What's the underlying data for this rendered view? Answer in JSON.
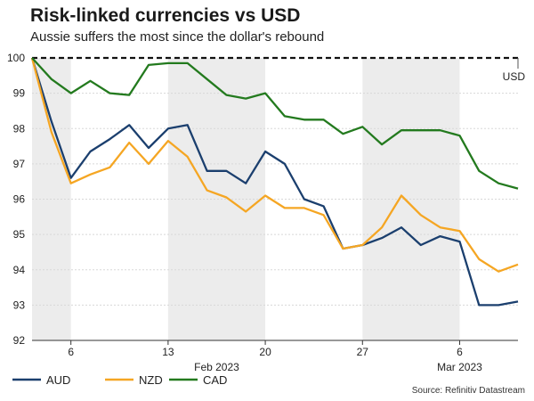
{
  "title": "Risk-linked currencies vs USD",
  "subtitle": "Aussie suffers the most since the dollar's rebound",
  "source": "Source: Refinitiv Datastream",
  "chart_data": {
    "type": "line",
    "x_tick_labels": [
      "6",
      "13",
      "20",
      "27",
      "6"
    ],
    "x_month_labels": [
      "Feb 2023",
      "Mar 2023"
    ],
    "ylim": [
      92,
      100
    ],
    "yticks": [
      92,
      93,
      94,
      95,
      96,
      97,
      98,
      99,
      100
    ],
    "grid": "horizontal",
    "legend_position": "bottom-left",
    "reference_line": {
      "label": "USD",
      "value": 100
    },
    "x": [
      "Feb 2",
      "Feb 3",
      "Feb 6",
      "Feb 7",
      "Feb 8",
      "Feb 9",
      "Feb 10",
      "Feb 13",
      "Feb 14",
      "Feb 15",
      "Feb 16",
      "Feb 17",
      "Feb 20",
      "Feb 21",
      "Feb 22",
      "Feb 23",
      "Feb 24",
      "Feb 27",
      "Feb 28",
      "Mar 1",
      "Mar 2",
      "Mar 3",
      "Mar 6",
      "Mar 7",
      "Mar 8",
      "Mar 9"
    ],
    "series": [
      {
        "name": "AUD",
        "color": "#1b3f6e",
        "values": [
          100,
          98.2,
          96.6,
          97.35,
          97.7,
          98.1,
          97.45,
          98.0,
          98.1,
          96.8,
          96.8,
          96.45,
          97.35,
          97.0,
          96.0,
          95.8,
          94.6,
          94.7,
          94.9,
          95.2,
          94.7,
          94.95,
          94.8,
          93.0,
          93.0,
          93.1
        ]
      },
      {
        "name": "NZD",
        "color": "#f5a623",
        "values": [
          100,
          97.9,
          96.45,
          96.7,
          96.9,
          97.6,
          97.0,
          97.65,
          97.2,
          96.25,
          96.05,
          95.65,
          96.1,
          95.75,
          95.75,
          95.55,
          94.6,
          94.7,
          95.2,
          96.1,
          95.55,
          95.2,
          95.1,
          94.3,
          93.95,
          94.15
        ]
      },
      {
        "name": "CAD",
        "color": "#237a1e",
        "values": [
          100,
          99.4,
          99.0,
          99.35,
          99.0,
          98.95,
          99.8,
          99.85,
          99.85,
          99.4,
          98.95,
          98.85,
          99.0,
          98.35,
          98.25,
          98.25,
          97.85,
          98.05,
          97.55,
          97.95,
          97.95,
          97.95,
          97.8,
          96.8,
          96.45,
          96.3
        ]
      }
    ]
  }
}
